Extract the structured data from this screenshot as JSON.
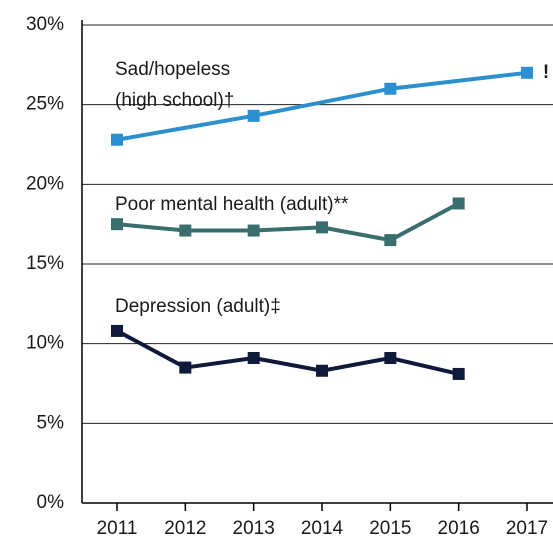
{
  "chart_data": {
    "type": "line",
    "xlim": [
      2010.5,
      2017.4
    ],
    "xticks": [
      2011,
      2012,
      2013,
      2014,
      2015,
      2016,
      2017
    ],
    "ylim": [
      0,
      30
    ],
    "yticks": [
      {
        "value": 0,
        "label": "0%"
      },
      {
        "value": 5,
        "label": "5%"
      },
      {
        "value": 10,
        "label": "10%"
      },
      {
        "value": 15,
        "label": "15%"
      },
      {
        "value": 20,
        "label": "20%"
      },
      {
        "value": 25,
        "label": "25%"
      },
      {
        "value": 30,
        "label": "30%"
      }
    ],
    "grid": true,
    "series": [
      {
        "name": [
          "Sad/hopeless",
          "(high school)†"
        ],
        "color": "#2b8fd0",
        "x": [
          2011,
          2013,
          2015,
          2017
        ],
        "values": [
          22.8,
          24.3,
          26.0,
          27.0
        ]
      },
      {
        "name": [
          "Poor mental health (adult)**"
        ],
        "color": "#3a6e6e",
        "x": [
          2011,
          2012,
          2013,
          2014,
          2015,
          2016
        ],
        "values": [
          17.5,
          17.1,
          17.1,
          17.3,
          16.5,
          18.8
        ]
      },
      {
        "name": [
          "Depression (adult)‡"
        ],
        "color": "#0f1a3a",
        "x": [
          2011,
          2012,
          2013,
          2014,
          2015,
          2016
        ],
        "values": [
          10.8,
          8.5,
          9.1,
          8.3,
          9.1,
          8.1
        ]
      }
    ],
    "annotations": [
      {
        "text": "!",
        "color": "#e03c31"
      }
    ]
  }
}
